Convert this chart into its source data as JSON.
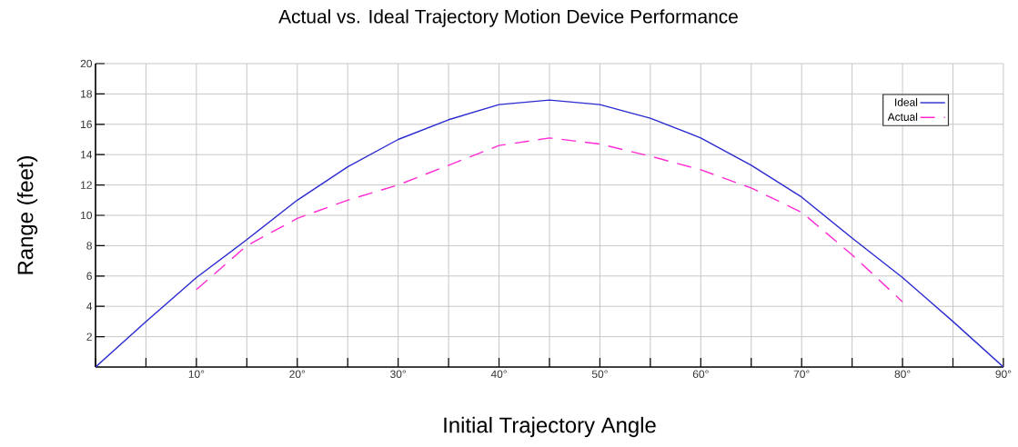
{
  "chart_data": {
    "type": "line",
    "title": "Actual vs. Ideal Trajectory Motion Device Performance",
    "xlabel": "Initial Trajectory Angle",
    "ylabel": "Range (feet)",
    "xlim": [
      0,
      90
    ],
    "ylim": [
      0,
      20
    ],
    "xticks": [
      {
        "value": 0,
        "label": null
      },
      {
        "value": 5,
        "label": null
      },
      {
        "value": 10,
        "label": "10°"
      },
      {
        "value": 15,
        "label": null
      },
      {
        "value": 20,
        "label": "20°"
      },
      {
        "value": 25,
        "label": null
      },
      {
        "value": 30,
        "label": "30°"
      },
      {
        "value": 35,
        "label": null
      },
      {
        "value": 40,
        "label": "40°"
      },
      {
        "value": 45,
        "label": null
      },
      {
        "value": 50,
        "label": "50°"
      },
      {
        "value": 55,
        "label": null
      },
      {
        "value": 60,
        "label": "60°"
      },
      {
        "value": 65,
        "label": null
      },
      {
        "value": 70,
        "label": "70°"
      },
      {
        "value": 75,
        "label": null
      },
      {
        "value": 80,
        "label": "80°"
      },
      {
        "value": 85,
        "label": null
      },
      {
        "value": 90,
        "label": "90°"
      }
    ],
    "yticks": [
      2,
      4,
      6,
      8,
      10,
      12,
      14,
      16,
      18,
      20
    ],
    "grid": true,
    "legend": "top right",
    "marker": "none",
    "series": [
      {
        "name": "Ideal",
        "color": "#2a2ad0",
        "line_style": "solid",
        "x": [
          0,
          5,
          10,
          15,
          20,
          25,
          30,
          35,
          40,
          45,
          50,
          55,
          60,
          65,
          70,
          75,
          80,
          85,
          90
        ],
        "values": [
          0,
          3.0,
          5.9,
          8.4,
          11.0,
          13.2,
          15.0,
          16.3,
          17.3,
          17.6,
          17.3,
          16.4,
          15.1,
          13.3,
          11.2,
          8.5,
          5.9,
          3.0,
          0
        ]
      },
      {
        "name": "Actual",
        "color": "#ff2ad4",
        "line_style": "dashed",
        "x": [
          10,
          15,
          20,
          25,
          30,
          35,
          40,
          45,
          50,
          55,
          60,
          65,
          70,
          75,
          80
        ],
        "values": [
          5.1,
          8.0,
          9.8,
          11.0,
          12.0,
          13.3,
          14.6,
          15.1,
          14.7,
          13.9,
          13.0,
          11.8,
          10.2,
          7.4,
          4.3
        ]
      }
    ]
  }
}
